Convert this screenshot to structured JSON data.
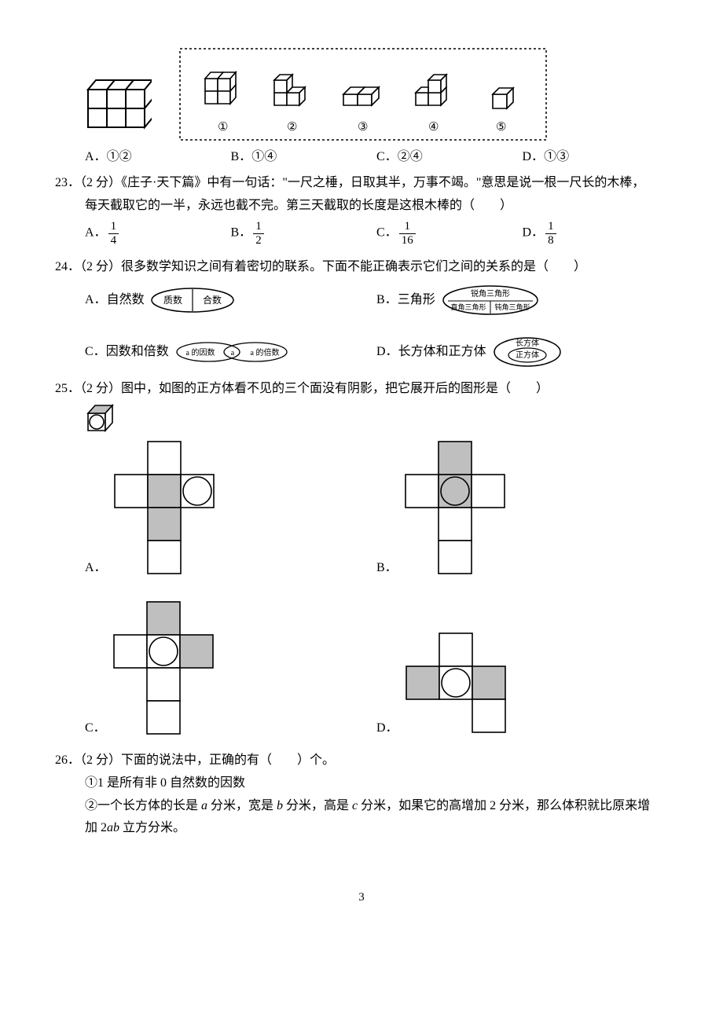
{
  "colors": {
    "text": "#000000",
    "bg": "#ffffff",
    "stroke": "#000000",
    "dash": "#000000",
    "shade_fill": "#bfbfbf",
    "grid_fill": "#ffffff"
  },
  "typography": {
    "body_family": "SimSun",
    "body_size_pt": 12,
    "italic_family": "Times New Roman"
  },
  "top_figure": {
    "cube_block": {
      "rows": 2,
      "cols": 3,
      "depth": 2
    },
    "options_box": {
      "border_style": "dashed",
      "items": [
        {
          "label": "①",
          "desc": "2x2x2 cube cluster"
        },
        {
          "label": "②",
          "desc": "L-shape 3 cubes"
        },
        {
          "label": "③",
          "desc": "flat 2x2 slab"
        },
        {
          "label": "④",
          "desc": "2x2 with one offset on top"
        },
        {
          "label": "⑤",
          "desc": "single cube"
        }
      ]
    },
    "choices": {
      "A": "①②",
      "B": "①④",
      "C": "②④",
      "D": "①③"
    }
  },
  "q23": {
    "number": "23",
    "points": "（2 分）",
    "text1": "《庄子·天下篇》中有一句话：\"一尺之棰，日取其半，万事不竭。\"意思是说一根一尺长的木棒，",
    "text2": "每天截取它的一半，永远也截不完。第三天截取的长度是这根木棒的（　　）",
    "choices": {
      "A": {
        "num": "1",
        "den": "4"
      },
      "B": {
        "num": "1",
        "den": "2"
      },
      "C": {
        "num": "1",
        "den": "16"
      },
      "D": {
        "num": "1",
        "den": "8"
      }
    }
  },
  "q24": {
    "number": "24",
    "points": "（2 分）",
    "text": "很多数学知识之间有着密切的联系。下面不能正确表示它们之间的关系的是（　　）",
    "choices": {
      "A": {
        "label": "自然数",
        "diagram": {
          "outer": "自然数",
          "left": "质数",
          "right": "合数"
        }
      },
      "B": {
        "label": "三角形",
        "diagram": {
          "top": "锐角三角形",
          "left": "直角三角形",
          "right": "钝角三角形"
        }
      },
      "C": {
        "label": "因数和倍数",
        "diagram": {
          "left": "a 的因数",
          "mid": "a",
          "right": "a 的倍数"
        }
      },
      "D": {
        "label": "长方体和正方体",
        "diagram": {
          "outer": "长方体",
          "inner": "正方体"
        }
      }
    }
  },
  "q25": {
    "number": "25",
    "points": "（2 分）",
    "text": "图中，如图的正方体看不见的三个面没有阴影，把它展开后的图形是（　　）",
    "cube_icon": {
      "top_shaded": true,
      "front_circle": true,
      "right_shaded": false
    },
    "net_cell": 42,
    "choices": {
      "A": {
        "layout": "cross",
        "cells": [
          {
            "r": 0,
            "c": 1,
            "shade": false,
            "circle": false
          },
          {
            "r": 1,
            "c": 0,
            "shade": false,
            "circle": false
          },
          {
            "r": 1,
            "c": 1,
            "shade": true,
            "circle": false
          },
          {
            "r": 1,
            "c": 2,
            "shade": false,
            "circle": true
          },
          {
            "r": 2,
            "c": 1,
            "shade": true,
            "circle": false
          },
          {
            "r": 3,
            "c": 1,
            "shade": false,
            "circle": false
          }
        ]
      },
      "B": {
        "layout": "cross",
        "cells": [
          {
            "r": 0,
            "c": 1,
            "shade": true,
            "circle": false
          },
          {
            "r": 1,
            "c": 0,
            "shade": false,
            "circle": false
          },
          {
            "r": 1,
            "c": 1,
            "shade": true,
            "circle": true
          },
          {
            "r": 1,
            "c": 2,
            "shade": false,
            "circle": false
          },
          {
            "r": 2,
            "c": 1,
            "shade": false,
            "circle": false
          },
          {
            "r": 3,
            "c": 1,
            "shade": false,
            "circle": false
          }
        ]
      },
      "C": {
        "layout": "cross",
        "cells": [
          {
            "r": 0,
            "c": 1,
            "shade": true,
            "circle": false
          },
          {
            "r": 1,
            "c": 0,
            "shade": false,
            "circle": false
          },
          {
            "r": 1,
            "c": 1,
            "shade": false,
            "circle": true
          },
          {
            "r": 1,
            "c": 2,
            "shade": true,
            "circle": false
          },
          {
            "r": 2,
            "c": 1,
            "shade": false,
            "circle": false
          },
          {
            "r": 3,
            "c": 1,
            "shade": false,
            "circle": false
          }
        ]
      },
      "D": {
        "layout": "T",
        "cells": [
          {
            "r": 0,
            "c": 1,
            "shade": false,
            "circle": false
          },
          {
            "r": 1,
            "c": 0,
            "shade": true,
            "circle": false
          },
          {
            "r": 1,
            "c": 1,
            "shade": false,
            "circle": true
          },
          {
            "r": 1,
            "c": 2,
            "shade": true,
            "circle": false
          },
          {
            "r": 2,
            "c": 2,
            "shade": false,
            "circle": false
          }
        ]
      }
    }
  },
  "q26": {
    "number": "26",
    "points": "（2 分）",
    "text": "下面的说法中，正确的有（　　）个。",
    "items": {
      "i1": "①1 是所有非 0 自然数的因数",
      "i2_pre": "②一个长方体的长是 ",
      "i2_a": "a",
      "i2_mid1": " 分米，宽是 ",
      "i2_b": "b",
      "i2_mid2": " 分米，高是 ",
      "i2_c": "c",
      "i2_mid3": " 分米，如果它的高增加 2 分米，那么体积就比原来增",
      "i2_line2_pre": "加 2",
      "i2_ab": "ab",
      "i2_line2_post": " 立方分米。"
    }
  },
  "page_number": "3"
}
